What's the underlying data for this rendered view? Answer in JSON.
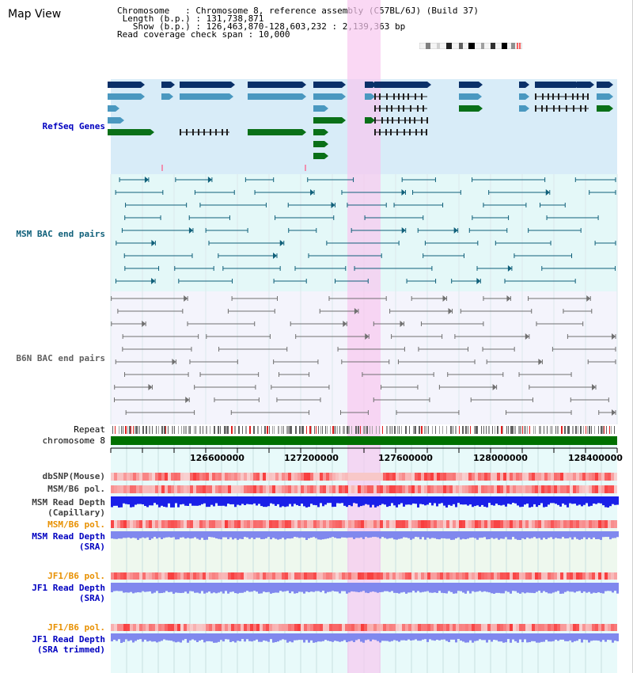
{
  "title": "Map View",
  "info": {
    "chromosome": "Chromosome   : Chromosome 8, reference assembly (C57BL/6J) (Build 37)",
    "length": " Length (b.p.) : 131,738,871",
    "show": "   Show (b.p.) : 126,463,870-128,603,232 : 2,139,363 bp",
    "coverage": "Read coverage check span : 10,000"
  },
  "colors": {
    "refseq_bg": "#d8ecf8",
    "bac_bg": "#e4f8f8",
    "b6n_bg": "#f4f4fc",
    "highlight": "#f8d8f4",
    "refseq_dark": "#0a3068",
    "refseq_mid": "#4a98c0",
    "refseq_green": "#0a7018",
    "msm_bac": "#10607a",
    "b6n_bac": "#707070",
    "chrom_green": "#007000",
    "msm_depth": "#1a20e8",
    "sra_depth": "#8088ee"
  },
  "tracks": {
    "refseq": "RefSeq Genes",
    "msm_bac": "MSM BAC end pairs",
    "b6n_bac": "B6N BAC end pairs",
    "repeat": "Repeat",
    "chromosome": "chromosome 8",
    "dbsnp": "dbSNP(Mouse)",
    "msm_pol": "MSM/B6 pol.",
    "msm_depth_cap_1": "MSM Read Depth",
    "msm_depth_cap_2": "(Capillary)",
    "msm_pol_2": "MSM/B6 pol.",
    "msm_depth_sra_1": "MSM Read Depth",
    "msm_depth_sra_2": "(SRA)",
    "jf1_pol": "JF1/B6 pol.",
    "jf1_depth_sra_1": "JF1 Read Depth",
    "jf1_depth_sra_2": "(SRA)",
    "jf1_pol_2": "JF1/B6 pol.",
    "jf1_depth_trim_1": "JF1 Read Depth",
    "jf1_depth_trim_2": "(SRA trimmed)"
  },
  "ruler": {
    "ticks": [
      "126600000",
      "127200000",
      "127600000",
      "128000000",
      "128400000"
    ]
  }
}
